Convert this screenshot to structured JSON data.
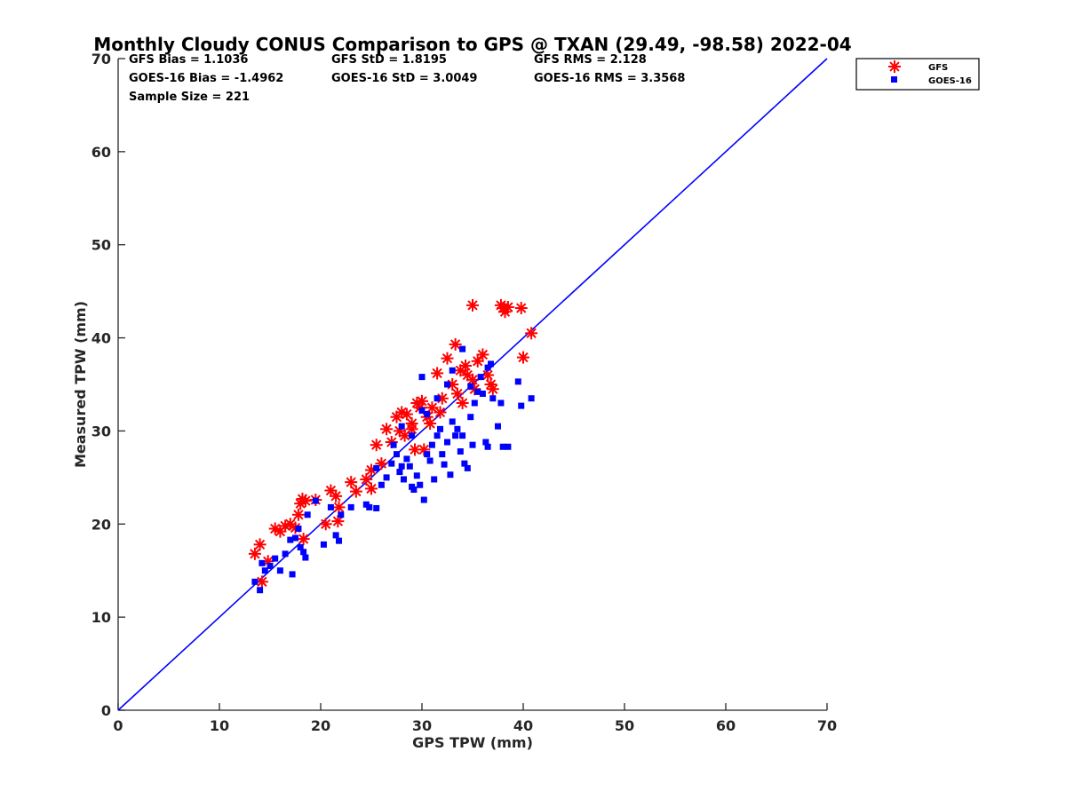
{
  "chart_data": {
    "type": "scatter",
    "title": "Monthly Cloudy CONUS Comparison to GPS @ TXAN (29.49, -98.58) 2022-04",
    "xlabel": "GPS TPW (mm)",
    "ylabel": "Measured TPW (mm)",
    "xlim": [
      0,
      70
    ],
    "ylim": [
      0,
      70
    ],
    "xticks": [
      0,
      10,
      20,
      30,
      40,
      50,
      60,
      70
    ],
    "yticks": [
      0,
      10,
      20,
      30,
      40,
      50,
      60,
      70
    ],
    "grid": false,
    "legend_position": "outside top-right",
    "stats": [
      {
        "text": "GFS Bias = 1.1036"
      },
      {
        "text": "GFS StD = 1.8195"
      },
      {
        "text": "GFS RMS = 2.128"
      },
      {
        "text": "GOES-16 Bias = -1.4962"
      },
      {
        "text": "GOES-16 StD = 3.0049"
      },
      {
        "text": "GOES-16 RMS = 3.3568"
      },
      {
        "text": "Sample Size = 221"
      }
    ],
    "reference_line": {
      "x": [
        0,
        70
      ],
      "y": [
        0,
        70
      ],
      "color": "#0000ff"
    },
    "series": [
      {
        "name": "GFS",
        "marker": "asterisk",
        "color": "#ff0000",
        "points": [
          [
            13.5,
            16.8
          ],
          [
            14,
            17.8
          ],
          [
            14.2,
            13.8
          ],
          [
            14.8,
            16
          ],
          [
            15.5,
            19.5
          ],
          [
            16,
            19.2
          ],
          [
            16.5,
            19.8
          ],
          [
            17,
            20
          ],
          [
            17.5,
            19.6
          ],
          [
            18,
            22.2
          ],
          [
            18.2,
            22.7
          ],
          [
            18.5,
            22.5
          ],
          [
            18.3,
            18.4
          ],
          [
            17.8,
            21
          ],
          [
            19.5,
            22.6
          ],
          [
            20.5,
            20
          ],
          [
            21,
            23.6
          ],
          [
            21.5,
            23
          ],
          [
            21.8,
            21.8
          ],
          [
            21.7,
            20.3
          ],
          [
            23,
            24.5
          ],
          [
            23.5,
            23.5
          ],
          [
            24.5,
            24.8
          ],
          [
            25,
            25.8
          ],
          [
            25,
            23.8
          ],
          [
            25.5,
            28.5
          ],
          [
            26,
            26.5
          ],
          [
            26.5,
            30.2
          ],
          [
            27,
            28.8
          ],
          [
            27.5,
            31.5
          ],
          [
            27.8,
            30
          ],
          [
            28,
            32
          ],
          [
            28.3,
            29.5
          ],
          [
            28.5,
            31.8
          ],
          [
            29,
            30.8
          ],
          [
            29.3,
            28
          ],
          [
            29.5,
            33
          ],
          [
            29.8,
            32.5
          ],
          [
            30,
            33.2
          ],
          [
            30.5,
            31.5
          ],
          [
            30.8,
            30.8
          ],
          [
            31,
            32.5
          ],
          [
            31.5,
            36.2
          ],
          [
            32,
            33.5
          ],
          [
            32.5,
            37.8
          ],
          [
            33,
            35
          ],
          [
            33.3,
            39.3
          ],
          [
            33.5,
            34
          ],
          [
            34,
            33
          ],
          [
            34.3,
            37
          ],
          [
            34.5,
            36
          ],
          [
            35,
            35.5
          ],
          [
            35.2,
            34.5
          ],
          [
            35.5,
            37.5
          ],
          [
            36,
            38.2
          ],
          [
            36.5,
            36
          ],
          [
            36.8,
            35
          ],
          [
            37,
            34.5
          ],
          [
            35,
            43.5
          ],
          [
            37.8,
            43.5
          ],
          [
            38,
            43.2
          ],
          [
            38.2,
            42.8
          ],
          [
            38.5,
            43.3
          ],
          [
            39.8,
            43.2
          ],
          [
            40,
            37.9
          ],
          [
            40.8,
            40.5
          ],
          [
            30.2,
            28
          ],
          [
            29,
            30.2
          ],
          [
            31.8,
            32
          ],
          [
            33.8,
            36.5
          ]
        ]
      },
      {
        "name": "GOES-16",
        "marker": "square",
        "color": "#0000ff",
        "points": [
          [
            13.5,
            13.8
          ],
          [
            14,
            12.9
          ],
          [
            14.2,
            15.8
          ],
          [
            14.5,
            15
          ],
          [
            15,
            15.5
          ],
          [
            15.5,
            16.3
          ],
          [
            16,
            15
          ],
          [
            16.5,
            16.8
          ],
          [
            17,
            18.3
          ],
          [
            17.2,
            14.6
          ],
          [
            17.5,
            18.5
          ],
          [
            17.8,
            19.5
          ],
          [
            18,
            17.5
          ],
          [
            18.3,
            17
          ],
          [
            18.5,
            16.4
          ],
          [
            18.7,
            21
          ],
          [
            19.5,
            22.5
          ],
          [
            20.3,
            17.8
          ],
          [
            21,
            21.8
          ],
          [
            21.5,
            18.8
          ],
          [
            21.8,
            18.2
          ],
          [
            22,
            21
          ],
          [
            23,
            21.8
          ],
          [
            24.5,
            22.1
          ],
          [
            24.8,
            21.8
          ],
          [
            25.5,
            21.7
          ],
          [
            25.5,
            26
          ],
          [
            26,
            24.2
          ],
          [
            26.5,
            25
          ],
          [
            27,
            26.5
          ],
          [
            27.5,
            27.5
          ],
          [
            27.8,
            25.6
          ],
          [
            28,
            26.2
          ],
          [
            28.2,
            24.8
          ],
          [
            28.5,
            27
          ],
          [
            28.8,
            26.2
          ],
          [
            29,
            24
          ],
          [
            29.2,
            23.7
          ],
          [
            29.5,
            25.2
          ],
          [
            29.8,
            24.2
          ],
          [
            30,
            35.8
          ],
          [
            30.2,
            22.6
          ],
          [
            30.5,
            27.5
          ],
          [
            30.8,
            26.8
          ],
          [
            31,
            28.5
          ],
          [
            31.2,
            24.8
          ],
          [
            31.5,
            29.5
          ],
          [
            31.8,
            30.2
          ],
          [
            32,
            27.5
          ],
          [
            32.2,
            26.4
          ],
          [
            32.5,
            28.8
          ],
          [
            32.8,
            25.3
          ],
          [
            33,
            31
          ],
          [
            33.3,
            29.5
          ],
          [
            33.5,
            30.2
          ],
          [
            33.8,
            27.8
          ],
          [
            34,
            29.5
          ],
          [
            34.2,
            26.5
          ],
          [
            34.5,
            26
          ],
          [
            34.8,
            31.5
          ],
          [
            35,
            28.5
          ],
          [
            35.2,
            33
          ],
          [
            35.5,
            34.2
          ],
          [
            36,
            34
          ],
          [
            36.3,
            28.8
          ],
          [
            36.5,
            28.3
          ],
          [
            36.8,
            37.2
          ],
          [
            37,
            33.5
          ],
          [
            37.5,
            30.5
          ],
          [
            37.8,
            33
          ],
          [
            38,
            28.3
          ],
          [
            38.5,
            28.3
          ],
          [
            39.5,
            35.3
          ],
          [
            39.8,
            32.7
          ],
          [
            40.8,
            33.5
          ],
          [
            34,
            38.8
          ],
          [
            33,
            36.5
          ],
          [
            30.5,
            31.8
          ],
          [
            29,
            29.5
          ],
          [
            28,
            30.5
          ],
          [
            27.2,
            28.5
          ],
          [
            30,
            32.2
          ],
          [
            31.5,
            33.5
          ],
          [
            32.5,
            35
          ],
          [
            34.8,
            34.8
          ],
          [
            35.8,
            35.8
          ],
          [
            36.5,
            36.8
          ]
        ]
      }
    ]
  }
}
